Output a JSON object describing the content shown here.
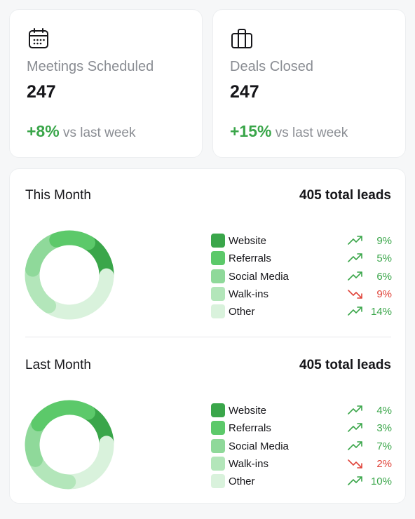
{
  "colors": {
    "green_dark": "#3aa64a",
    "green_mid": "#5cc96a",
    "green_light": "#8fd99a",
    "green_pale": "#b3e6ba",
    "green_faint": "#d9f2dc",
    "up": "#3aa64a",
    "down": "#e0443a"
  },
  "stats": [
    {
      "icon": "calendar-icon",
      "label": "Meetings Scheduled",
      "value": "247",
      "change_pct": "+8%",
      "change_text": "vs last week"
    },
    {
      "icon": "briefcase-icon",
      "label": "Deals Closed",
      "value": "247",
      "change_pct": "+15%",
      "change_text": "vs last week"
    }
  ],
  "leads": [
    {
      "title": "This Month",
      "total": "405 total leads",
      "segments": [
        0.17,
        0.14,
        0.17,
        0.18,
        0.34
      ],
      "items": [
        {
          "label": "Website",
          "change": "9%",
          "trend": "up"
        },
        {
          "label": "Referrals",
          "change": "5%",
          "trend": "up"
        },
        {
          "label": "Social Media",
          "change": "6%",
          "trend": "up"
        },
        {
          "label": "Walk-ins",
          "change": "9%",
          "trend": "down"
        },
        {
          "label": "Other",
          "change": "14%",
          "trend": "up"
        }
      ]
    },
    {
      "title": "Last Month",
      "total": "405 total leads",
      "segments": [
        0.16,
        0.24,
        0.16,
        0.18,
        0.26
      ],
      "items": [
        {
          "label": "Website",
          "change": "4%",
          "trend": "up"
        },
        {
          "label": "Referrals",
          "change": "3%",
          "trend": "up"
        },
        {
          "label": "Social Media",
          "change": "7%",
          "trend": "up"
        },
        {
          "label": "Walk-ins",
          "change": "2%",
          "trend": "down"
        },
        {
          "label": "Other",
          "change": "10%",
          "trend": "up"
        }
      ]
    }
  ]
}
